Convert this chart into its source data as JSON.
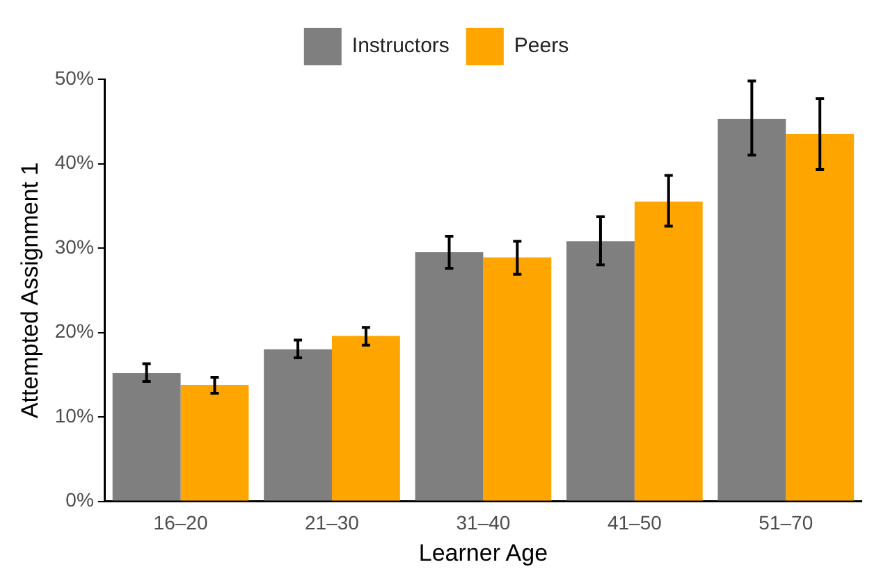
{
  "chart_data": {
    "type": "bar",
    "xlabel": "Learner Age",
    "ylabel": "Attempted Assignment 1",
    "categories": [
      "16–20",
      "21–30",
      "31–40",
      "41–50",
      "51–70"
    ],
    "series": [
      {
        "name": "Instructors",
        "color": "#7f7f7f",
        "values": [
          15.2,
          18.0,
          29.5,
          30.8,
          45.3
        ],
        "errors": [
          [
            14.2,
            16.3
          ],
          [
            17.0,
            19.1
          ],
          [
            27.6,
            31.4
          ],
          [
            28.0,
            33.7
          ],
          [
            41.0,
            49.8
          ]
        ]
      },
      {
        "name": "Peers",
        "color": "#ffa500",
        "values": [
          13.8,
          19.6,
          28.9,
          35.5,
          43.5
        ],
        "errors": [
          [
            12.8,
            14.7
          ],
          [
            18.5,
            20.6
          ],
          [
            26.9,
            30.8
          ],
          [
            32.6,
            38.6
          ],
          [
            39.3,
            47.7
          ]
        ]
      }
    ],
    "ylim": [
      0,
      50
    ],
    "yticks": [
      {
        "value": 0,
        "label": "0%"
      },
      {
        "value": 10,
        "label": "10%"
      },
      {
        "value": 20,
        "label": "20%"
      },
      {
        "value": 30,
        "label": "30%"
      },
      {
        "value": 40,
        "label": "40%"
      },
      {
        "value": 50,
        "label": "50%"
      }
    ],
    "grid": false,
    "legend": "top"
  }
}
